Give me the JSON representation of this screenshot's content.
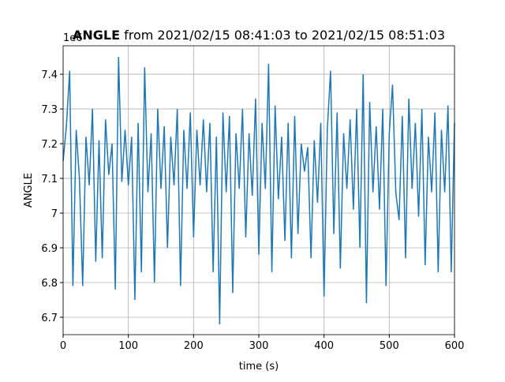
{
  "chart_data": {
    "type": "line",
    "title_bold": "ANGLE",
    "title": "from 2021/02/15 08:41:03 to 2021/02/15 08:51:03",
    "offset_label": "1e6",
    "xlabel": "time (s)",
    "ylabel": "ANGLE",
    "x": [
      0,
      5,
      10,
      15,
      20,
      25,
      30,
      35,
      40,
      45,
      50,
      55,
      60,
      65,
      70,
      75,
      80,
      85,
      90,
      95,
      100,
      105,
      110,
      115,
      120,
      125,
      130,
      135,
      140,
      145,
      150,
      155,
      160,
      165,
      170,
      175,
      180,
      185,
      190,
      195,
      200,
      205,
      210,
      215,
      220,
      225,
      230,
      235,
      240,
      245,
      250,
      255,
      260,
      265,
      270,
      275,
      280,
      285,
      290,
      295,
      300,
      305,
      310,
      315,
      320,
      325,
      330,
      335,
      340,
      345,
      350,
      355,
      360,
      365,
      370,
      375,
      380,
      385,
      390,
      395,
      400,
      405,
      410,
      415,
      420,
      425,
      430,
      435,
      440,
      445,
      450,
      455,
      460,
      465,
      470,
      475,
      480,
      485,
      490,
      495,
      500,
      505,
      510,
      515,
      520,
      525,
      530,
      535,
      540,
      545,
      550,
      555,
      560,
      565,
      570,
      575,
      580,
      585,
      590,
      595,
      600
    ],
    "series": [
      {
        "name": "ANGLE",
        "color": "#1f77b4",
        "values": [
          7.15,
          7.25,
          7.41,
          6.79,
          7.24,
          7.1,
          6.79,
          7.22,
          7.08,
          7.3,
          6.86,
          7.21,
          6.87,
          7.27,
          7.11,
          7.2,
          6.78,
          7.45,
          7.09,
          7.24,
          7.08,
          7.22,
          6.75,
          7.26,
          6.83,
          7.42,
          7.06,
          7.23,
          6.8,
          7.3,
          7.07,
          7.25,
          6.9,
          7.22,
          7.08,
          7.3,
          6.79,
          7.24,
          7.07,
          7.29,
          6.93,
          7.24,
          7.08,
          7.27,
          7.06,
          7.26,
          6.83,
          7.22,
          6.68,
          7.29,
          7.06,
          7.28,
          6.77,
          7.23,
          7.07,
          7.3,
          6.93,
          7.23,
          7.05,
          7.33,
          6.88,
          7.26,
          7.07,
          7.43,
          6.83,
          7.31,
          7.04,
          7.22,
          6.92,
          7.26,
          6.87,
          7.28,
          6.94,
          7.2,
          7.12,
          7.19,
          6.87,
          7.21,
          7.03,
          7.26,
          6.76,
          7.24,
          7.41,
          6.94,
          7.29,
          6.84,
          7.23,
          7.07,
          7.27,
          7.01,
          7.3,
          6.9,
          7.4,
          6.74,
          7.32,
          7.06,
          7.25,
          7.01,
          7.3,
          6.79,
          7.23,
          7.37,
          7.06,
          6.98,
          7.28,
          6.87,
          7.33,
          7.07,
          7.26,
          6.99,
          7.3,
          6.85,
          7.22,
          7.06,
          7.29,
          6.83,
          7.24,
          7.06,
          7.31,
          6.83,
          7.26
        ]
      }
    ],
    "xlim": [
      0,
      600
    ],
    "xticks": [
      0,
      100,
      200,
      300,
      400,
      500,
      600
    ],
    "ylim": [
      6.65,
      7.482
    ],
    "yticks": [
      6.7,
      6.8,
      6.9,
      7.0,
      7.1,
      7.2,
      7.3,
      7.4
    ],
    "grid": true
  }
}
